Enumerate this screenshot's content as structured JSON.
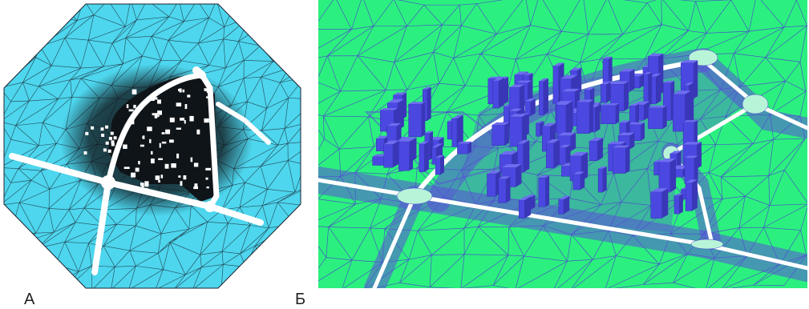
{
  "figure": {
    "panels": [
      {
        "label": "А",
        "view": "top",
        "background_color": "#4dd6ee",
        "mesh_color": "#1b2430",
        "road_color": "#ffffff",
        "dense_color": "#0f1418"
      },
      {
        "label": "Б",
        "view": "perspective",
        "background_color": "#2bf07f",
        "mesh_color": "#4b3fd0",
        "road_color": "#ffffff",
        "building_color": "#4a48e0",
        "near_road_color": "#b8f5d8"
      }
    ]
  }
}
